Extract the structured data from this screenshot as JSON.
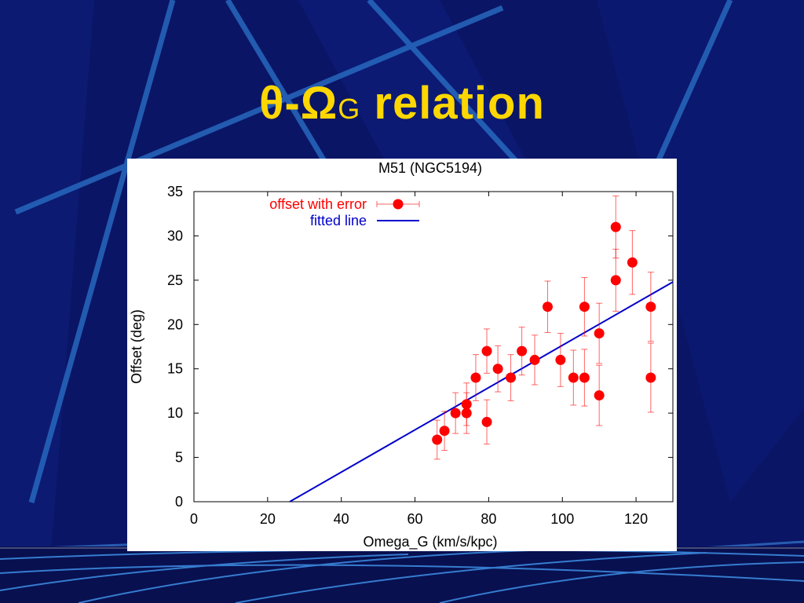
{
  "slide": {
    "title_main": "θ-Ω",
    "title_sub": "G",
    "title_rest": " relation",
    "colors": {
      "background": "#0a1566",
      "title": "#ffd700",
      "accent_lines": "#1f5fb8"
    }
  },
  "chart_data": {
    "type": "scatter",
    "title": "M51 (NGC5194)",
    "xlabel": "Omega_G (km/s/kpc)",
    "ylabel": "Offset (deg)",
    "xlim": [
      0,
      130
    ],
    "ylim": [
      0,
      35
    ],
    "xticks": [
      0,
      20,
      40,
      60,
      80,
      100,
      120
    ],
    "yticks": [
      0,
      5,
      10,
      15,
      20,
      25,
      30,
      35
    ],
    "grid": false,
    "legend_position": "top-left",
    "series": [
      {
        "name": "offset with error",
        "kind": "points_with_error",
        "color": "#ff0000",
        "points": [
          {
            "x": 66,
            "y": 7,
            "err": 2.2
          },
          {
            "x": 68,
            "y": 8,
            "err": 2.2
          },
          {
            "x": 71,
            "y": 10,
            "err": 2.3
          },
          {
            "x": 74,
            "y": 10,
            "err": 2.3
          },
          {
            "x": 74,
            "y": 11,
            "err": 2.4
          },
          {
            "x": 76.5,
            "y": 14,
            "err": 2.6
          },
          {
            "x": 79.5,
            "y": 9,
            "err": 2.5
          },
          {
            "x": 79.5,
            "y": 17,
            "err": 2.5
          },
          {
            "x": 82.5,
            "y": 15,
            "err": 2.6
          },
          {
            "x": 86,
            "y": 14,
            "err": 2.6
          },
          {
            "x": 89,
            "y": 17,
            "err": 2.7
          },
          {
            "x": 92.5,
            "y": 16,
            "err": 2.8
          },
          {
            "x": 96,
            "y": 22,
            "err": 2.9
          },
          {
            "x": 99.5,
            "y": 16,
            "err": 3.0
          },
          {
            "x": 103,
            "y": 14,
            "err": 3.1
          },
          {
            "x": 106,
            "y": 14,
            "err": 3.2
          },
          {
            "x": 106,
            "y": 22,
            "err": 3.3
          },
          {
            "x": 110,
            "y": 12,
            "err": 3.4
          },
          {
            "x": 110,
            "y": 19,
            "err": 3.4
          },
          {
            "x": 114.5,
            "y": 25,
            "err": 3.5
          },
          {
            "x": 114.5,
            "y": 31,
            "err": 3.5
          },
          {
            "x": 119,
            "y": 27,
            "err": 3.6
          },
          {
            "x": 124,
            "y": 14,
            "err": 3.9
          },
          {
            "x": 124,
            "y": 22,
            "err": 3.9
          }
        ]
      },
      {
        "name": "fitted line",
        "kind": "line",
        "color": "#0000cc",
        "x": [
          26,
          130
        ],
        "y": [
          0,
          24.8
        ]
      }
    ]
  }
}
